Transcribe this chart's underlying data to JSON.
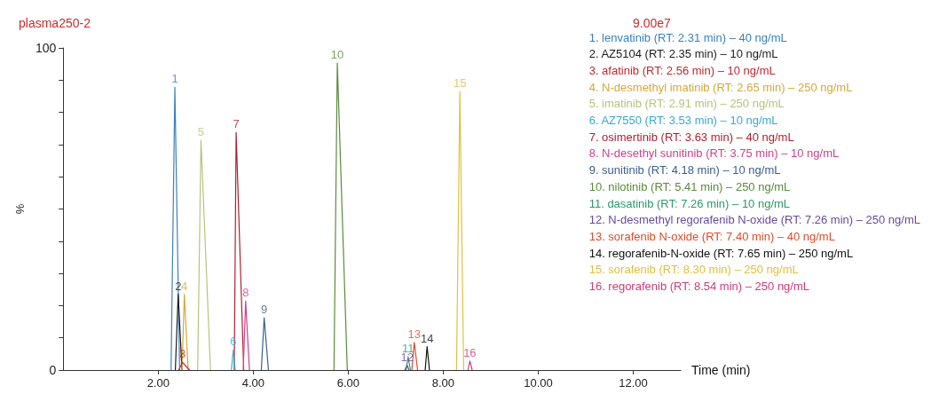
{
  "chart_data": {
    "type": "line",
    "title": "plasma250-2",
    "xlabel": "Time (min)",
    "ylabel": "%",
    "xlim": [
      0,
      13
    ],
    "xticks": [
      {
        "value": 2,
        "label": "2.00"
      },
      {
        "value": 4,
        "label": "4.00"
      },
      {
        "value": 6,
        "label": "6.00"
      },
      {
        "value": 8,
        "label": "8.00"
      },
      {
        "value": 10,
        "label": "10.00"
      },
      {
        "value": 12,
        "label": "12.00"
      }
    ],
    "ylim": [
      0,
      100
    ],
    "yticks": [
      0,
      {
        "value": 10,
        "label": null
      },
      {
        "value": 20,
        "label": null
      },
      {
        "value": 30,
        "label": null
      },
      {
        "value": 40,
        "label": null
      },
      {
        "value": 50,
        "label": null
      },
      {
        "value": 60,
        "label": null
      },
      {
        "value": 70,
        "label": null
      },
      {
        "value": 80,
        "label": null
      },
      {
        "value": 90,
        "label": null
      },
      100
    ],
    "grid": false,
    "legend": "top right",
    "marker": "none",
    "line_style": "solid",
    "series": [
      {
        "name": "1. lenvatinib (RT: 2.31 min) – 40 ng/mL",
        "color": "#3a7fc0",
        "x": [
          2.27,
          2.35,
          2.45
        ],
        "values": [
          0,
          87.8,
          0
        ]
      },
      {
        "name": "2. AZ5104 (RT: 2.35 min) – 10 ng/mL",
        "color": "#1a1a1a",
        "x": [
          2.36,
          2.42,
          2.5
        ],
        "values": [
          0,
          23.5,
          0
        ]
      },
      {
        "name": "3. afatinib (RT: 2.56 min) – 10 ng/mL",
        "color": "#c0282e",
        "x": [
          2.43,
          2.51,
          2.66
        ],
        "values": [
          0,
          2.4,
          0
        ]
      },
      {
        "name": "4. N-desmethyl imatinib (RT: 2.65 min) – 250 ng/mL",
        "color": "#d4a838",
        "x": [
          2.5,
          2.55,
          2.63
        ],
        "values": [
          0,
          23.5,
          0
        ]
      },
      {
        "name": "5. imatinib (RT: 2.91 min) – 250 ng/mL",
        "color": "#b5c47a",
        "x": [
          2.83,
          2.9,
          3.1
        ],
        "values": [
          0,
          71.3,
          0
        ]
      },
      {
        "name": "6. AZ7550 (RT: 3.53 min) – 10 ng/mL",
        "color": "#3aa7d4",
        "x": [
          3.54,
          3.58,
          3.62
        ],
        "values": [
          0,
          6.2,
          0
        ]
      },
      {
        "name": "7. osimertinib (RT: 3.63 min) – 40 ng/mL",
        "color": "#b01e2e",
        "x": [
          3.6,
          3.64,
          3.8
        ],
        "values": [
          0,
          73.7,
          0
        ]
      },
      {
        "name": "8. N-desethyl sunitinib (RT: 3.75 min) – 10 ng/mL",
        "color": "#d0408e",
        "x": [
          3.79,
          3.84,
          3.92
        ],
        "values": [
          0,
          21.4,
          0
        ]
      },
      {
        "name": "9. sunitinib (RT: 4.18 min) – 10 ng/mL",
        "color": "#3b5f8a",
        "x": [
          4.17,
          4.23,
          4.32
        ],
        "values": [
          0,
          16.2,
          0
        ]
      },
      {
        "name": "10. nilotinib (RT: 5.41 min) – 250 ng/mL",
        "color": "#5a8a3a",
        "x": [
          5.7,
          5.77,
          5.98
        ],
        "values": [
          0,
          95.3,
          0
        ]
      },
      {
        "name": "11. dasatinib (RT: 7.26 min) – 10 ng/mL",
        "color": "#2a9a6a",
        "x": [
          7.22,
          7.26,
          7.31
        ],
        "values": [
          0,
          4.1,
          0
        ]
      },
      {
        "name": "12. N-desmethyl regorafenib N-oxide (RT: 7.26 min) – 250 ng/mL",
        "color": "#6a4a9a",
        "x": [
          7.19,
          7.24,
          7.28
        ],
        "values": [
          0,
          1.5,
          0
        ]
      },
      {
        "name": "13. sorafenib N-oxide (RT: 7.40 min) – 40 ng/mL",
        "color": "#e04a2a",
        "x": [
          7.34,
          7.39,
          7.46
        ],
        "values": [
          0,
          8.6,
          0
        ]
      },
      {
        "name": "14. regorafenib-N-oxide (RT: 7.65 min) – 250 ng/mL",
        "color": "#111111",
        "x": [
          7.62,
          7.66,
          7.71
        ],
        "values": [
          0,
          7.3,
          0
        ]
      },
      {
        "name": "15. sorafenib (RT: 8.30 min) – 250 ng/mL",
        "color": "#e0c040",
        "x": [
          8.28,
          8.35,
          8.43
        ],
        "values": [
          0,
          86.5,
          0
        ]
      },
      {
        "name": "16. regorafenib (RT: 8.54 min) – 250 ng/mL",
        "color": "#d03a7a",
        "x": [
          8.52,
          8.56,
          8.61
        ],
        "values": [
          0,
          2.8,
          0
        ]
      }
    ],
    "annotations": [
      {
        "text": "1",
        "x": 2.35,
        "y": 87.8
      },
      {
        "text": "2",
        "x": 2.42,
        "y": 23.5
      },
      {
        "text": "3",
        "x": 2.51,
        "y": 2.4
      },
      {
        "text": "4",
        "x": 2.55,
        "y": 23.5
      },
      {
        "text": "5",
        "x": 2.9,
        "y": 71.3
      },
      {
        "text": "6",
        "x": 3.58,
        "y": 6.2
      },
      {
        "text": "7",
        "x": 3.64,
        "y": 73.7
      },
      {
        "text": "8",
        "x": 3.84,
        "y": 21.4
      },
      {
        "text": "9",
        "x": 4.23,
        "y": 16.2
      },
      {
        "text": "10",
        "x": 5.77,
        "y": 95.3
      },
      {
        "text": "11",
        "x": 7.26,
        "y": 4.1
      },
      {
        "text": "12",
        "x": 7.24,
        "y": 1.5
      },
      {
        "text": "13",
        "x": 7.39,
        "y": 8.6
      },
      {
        "text": "14",
        "x": 7.66,
        "y": 7.3
      },
      {
        "text": "15",
        "x": 8.35,
        "y": 86.5
      },
      {
        "text": "16",
        "x": 8.56,
        "y": 2.8
      },
      "9.00e7"
    ]
  }
}
